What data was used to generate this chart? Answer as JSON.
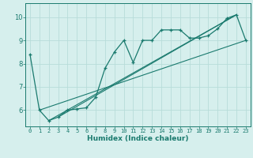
{
  "title": "",
  "xlabel": "Humidex (Indice chaleur)",
  "bg_color": "#d6efed",
  "grid_color": "#b8dcd9",
  "line_color": "#1a7a6e",
  "xlim": [
    -0.5,
    23.5
  ],
  "ylim": [
    5.3,
    10.6
  ],
  "yticks": [
    6,
    7,
    8,
    9,
    10
  ],
  "xticks": [
    0,
    1,
    2,
    3,
    4,
    5,
    6,
    7,
    8,
    9,
    10,
    11,
    12,
    13,
    14,
    15,
    16,
    17,
    18,
    19,
    20,
    21,
    22,
    23
  ],
  "series": [
    [
      0,
      8.4
    ],
    [
      1,
      6.0
    ],
    [
      2,
      5.55
    ],
    [
      3,
      5.7
    ],
    [
      4,
      6.0
    ],
    [
      5,
      6.05
    ],
    [
      6,
      6.1
    ],
    [
      7,
      6.55
    ],
    [
      8,
      7.8
    ],
    [
      9,
      8.5
    ],
    [
      10,
      9.0
    ],
    [
      11,
      8.05
    ],
    [
      12,
      9.0
    ],
    [
      13,
      9.0
    ],
    [
      14,
      9.45
    ],
    [
      15,
      9.45
    ],
    [
      16,
      9.45
    ],
    [
      17,
      9.1
    ],
    [
      18,
      9.1
    ],
    [
      19,
      9.2
    ],
    [
      20,
      9.5
    ],
    [
      21,
      9.95
    ],
    [
      22,
      10.1
    ],
    [
      23,
      9.0
    ]
  ],
  "line2": [
    [
      1,
      6.0
    ],
    [
      23,
      9.0
    ]
  ],
  "line3": [
    [
      2,
      5.55
    ],
    [
      22,
      10.1
    ]
  ],
  "line4": [
    [
      3,
      5.7
    ],
    [
      22,
      10.1
    ]
  ]
}
